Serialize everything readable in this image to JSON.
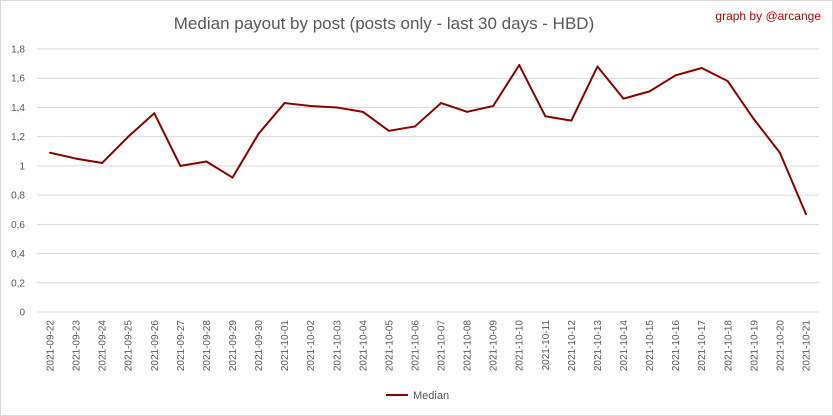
{
  "chart_data": {
    "type": "line",
    "title": "Median payout by post (posts only - last 30 days - HBD)",
    "credit": "graph by @arcange",
    "xlabel": "",
    "ylabel": "",
    "ylim": [
      0,
      1.8
    ],
    "yticks": [
      "0",
      "0,2",
      "0,4",
      "0,6",
      "0,8",
      "1",
      "1,2",
      "1,4",
      "1,6",
      "1,8"
    ],
    "grid": true,
    "legend_position": "bottom",
    "categories": [
      "2021-09-22",
      "2021-09-23",
      "2021-09-24",
      "2021-09-25",
      "2021-09-26",
      "2021-09-27",
      "2021-09-28",
      "2021-09-29",
      "2021-09-30",
      "2021-10-01",
      "2021-10-02",
      "2021-10-03",
      "2021-10-04",
      "2021-10-05",
      "2021-10-06",
      "2021-10-07",
      "2021-10-08",
      "2021-10-09",
      "2021-10-10",
      "2021-10-11",
      "2021-10-12",
      "2021-10-13",
      "2021-10-14",
      "2021-10-15",
      "2021-10-16",
      "2021-10-17",
      "2021-10-18",
      "2021-10-19",
      "2021-10-20",
      "2021-10-21"
    ],
    "series": [
      {
        "name": "Median",
        "color": "#8b0000",
        "values": [
          1.09,
          1.05,
          1.02,
          1.2,
          1.36,
          1.0,
          1.03,
          0.92,
          1.22,
          1.43,
          1.41,
          1.4,
          1.37,
          1.24,
          1.27,
          1.43,
          1.37,
          1.41,
          1.69,
          1.34,
          1.31,
          1.68,
          1.46,
          1.51,
          1.62,
          1.67,
          1.58,
          1.32,
          1.09,
          0.67
        ]
      }
    ],
    "colors": {
      "grid": "#d9d9d9",
      "text": "#595959",
      "credit": "#c00000"
    }
  }
}
